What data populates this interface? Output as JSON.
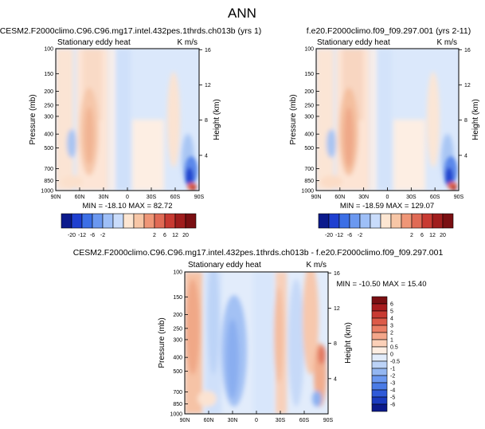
{
  "page_title": "ANN",
  "chart_data": [
    {
      "type": "heatmap",
      "title": "CESM2.F2000climo.C96.C96.mg17.intel.432pes.1thrds.ch013b (yrs 1)",
      "variable": "Stationary eddy heat",
      "units": "K m/s",
      "ylabel": "Pressure (mb)",
      "ylabel_right": "Height (km)",
      "x_ticks": [
        "90N",
        "60N",
        "30N",
        "0",
        "30S",
        "60S",
        "90S"
      ],
      "y_ticks": [
        "100",
        "150",
        "200",
        "250",
        "300",
        "400",
        "500",
        "700",
        "850",
        "1000"
      ],
      "y_ticks_right": [
        "16",
        "12",
        "8",
        "4"
      ],
      "min_max_text": "MIN = -18.10   MAX = 82.72",
      "colorbar_labels": [
        "-20",
        "-12",
        "-6",
        "-2",
        "2",
        "6",
        "12",
        "20"
      ],
      "colorbar_colors": [
        "#0b1a8c",
        "#1e3fd0",
        "#3c6fe6",
        "#6b98f0",
        "#9ebff7",
        "#c9dcfb",
        "#fde6d2",
        "#f7c6a6",
        "#ef9677",
        "#e06a55",
        "#c83a32",
        "#a01d1d",
        "#7a0f12"
      ]
    },
    {
      "type": "heatmap",
      "title": "f.e20.F2000climo.f09_f09.297.001 (yrs 2-11)",
      "variable": "Stationary eddy heat",
      "units": "K m/s",
      "ylabel": "Pressure (mb)",
      "ylabel_right": "Height (km)",
      "x_ticks": [
        "90N",
        "60N",
        "30N",
        "0",
        "30S",
        "60S",
        "90S"
      ],
      "y_ticks": [
        "100",
        "150",
        "200",
        "250",
        "300",
        "400",
        "500",
        "700",
        "850",
        "1000"
      ],
      "y_ticks_right": [
        "16",
        "12",
        "8",
        "4"
      ],
      "min_max_text": "MIN = -18.59   MAX = 129.07",
      "colorbar_labels": [
        "-20",
        "-12",
        "-6",
        "-2",
        "2",
        "6",
        "12",
        "20"
      ],
      "colorbar_colors": [
        "#0b1a8c",
        "#1e3fd0",
        "#3c6fe6",
        "#6b98f0",
        "#9ebff7",
        "#c9dcfb",
        "#fde6d2",
        "#f7c6a6",
        "#ef9677",
        "#e06a55",
        "#c83a32",
        "#a01d1d",
        "#7a0f12"
      ]
    },
    {
      "type": "heatmap",
      "title": "CESM2.F2000climo.C96.C96.mg17.intel.432pes.1thrds.ch013b - f.e20.F2000climo.f09_f09.297.001",
      "variable": "Stationary eddy heat",
      "units": "K m/s",
      "ylabel": "Pressure (mb)",
      "ylabel_right": "Height (km)",
      "x_ticks": [
        "90N",
        "60N",
        "30N",
        "0",
        "30S",
        "60S",
        "90S"
      ],
      "y_ticks": [
        "100",
        "150",
        "200",
        "250",
        "300",
        "400",
        "500",
        "700",
        "850",
        "1000"
      ],
      "y_ticks_right": [
        "16",
        "12",
        "8",
        "4"
      ],
      "min_max_text": "MIN = -10.50   MAX =  15.40",
      "colorbar_labels": [
        "6",
        "5",
        "4",
        "3",
        "2",
        "1",
        "0.5",
        "0",
        "-0.5",
        "-1",
        "-2",
        "-3",
        "-4",
        "-5",
        "-6"
      ],
      "colorbar_colors": [
        "#7a0f12",
        "#a81c1e",
        "#c83a32",
        "#dc5a48",
        "#ea7e65",
        "#f4a68a",
        "#fbd0b8",
        "#fdeee3",
        "#e2ecfb",
        "#bcd3f7",
        "#93b6f1",
        "#6b98f0",
        "#4a7be6",
        "#2f5ad8",
        "#1a3bbf",
        "#0b1a8c"
      ]
    }
  ]
}
